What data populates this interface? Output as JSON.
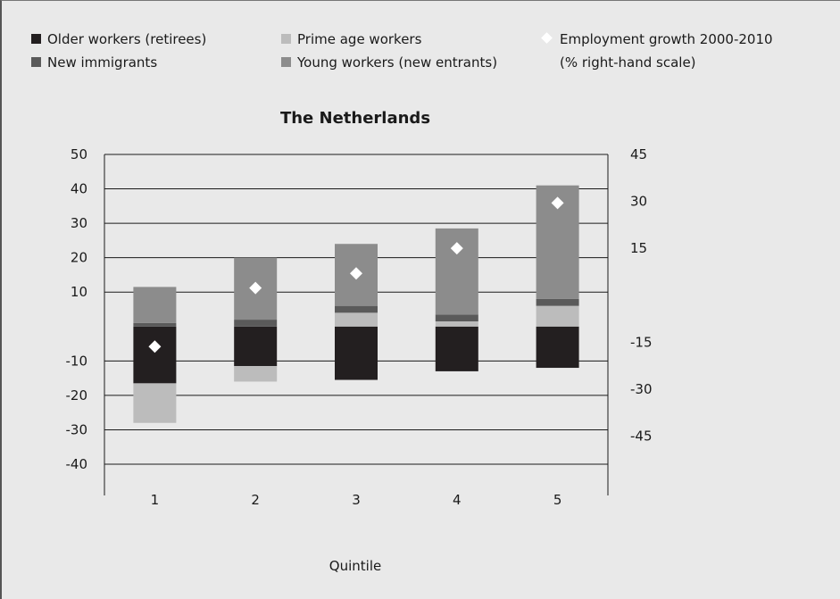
{
  "chart_data": {
    "type": "bar",
    "title": "The Netherlands",
    "xlabel": "Quintile",
    "ylabel": "",
    "categories": [
      "1",
      "2",
      "3",
      "4",
      "5"
    ],
    "ylim": [
      -40,
      50
    ],
    "yticks": [
      50,
      40,
      30,
      20,
      10,
      -10,
      -20,
      -30,
      -40
    ],
    "y2lim": [
      -54,
      45
    ],
    "y2ticks": [
      45,
      30,
      15,
      -15,
      -30,
      -45
    ],
    "grid": true,
    "legend_position": "top",
    "series": [
      {
        "name": "Older workers (retirees)",
        "color": "#231f20",
        "values": [
          -16.5,
          -11.5,
          -15.5,
          -13,
          -12
        ]
      },
      {
        "name": "Prime age workers",
        "color": "#bcbcbc",
        "values": [
          -11.5,
          -4.5,
          4.0,
          1.5,
          6.0
        ]
      },
      {
        "name": "New immigrants",
        "color": "#5a5a5a",
        "values": [
          1.0,
          2.0,
          2.0,
          2.0,
          2.0
        ]
      },
      {
        "name": "Young workers (new entrants)",
        "color": "#8c8c8c",
        "values": [
          10.5,
          18.0,
          18.0,
          25.0,
          33.0
        ]
      }
    ],
    "line_series": {
      "name": "Employment growth 2000-2010",
      "name_suffix": "(% right-hand scale)",
      "axis": "right",
      "marker": "diamond",
      "color": "#ffffff",
      "values": [
        -16.4,
        2.3,
        7.0,
        15.0,
        29.5
      ]
    }
  }
}
